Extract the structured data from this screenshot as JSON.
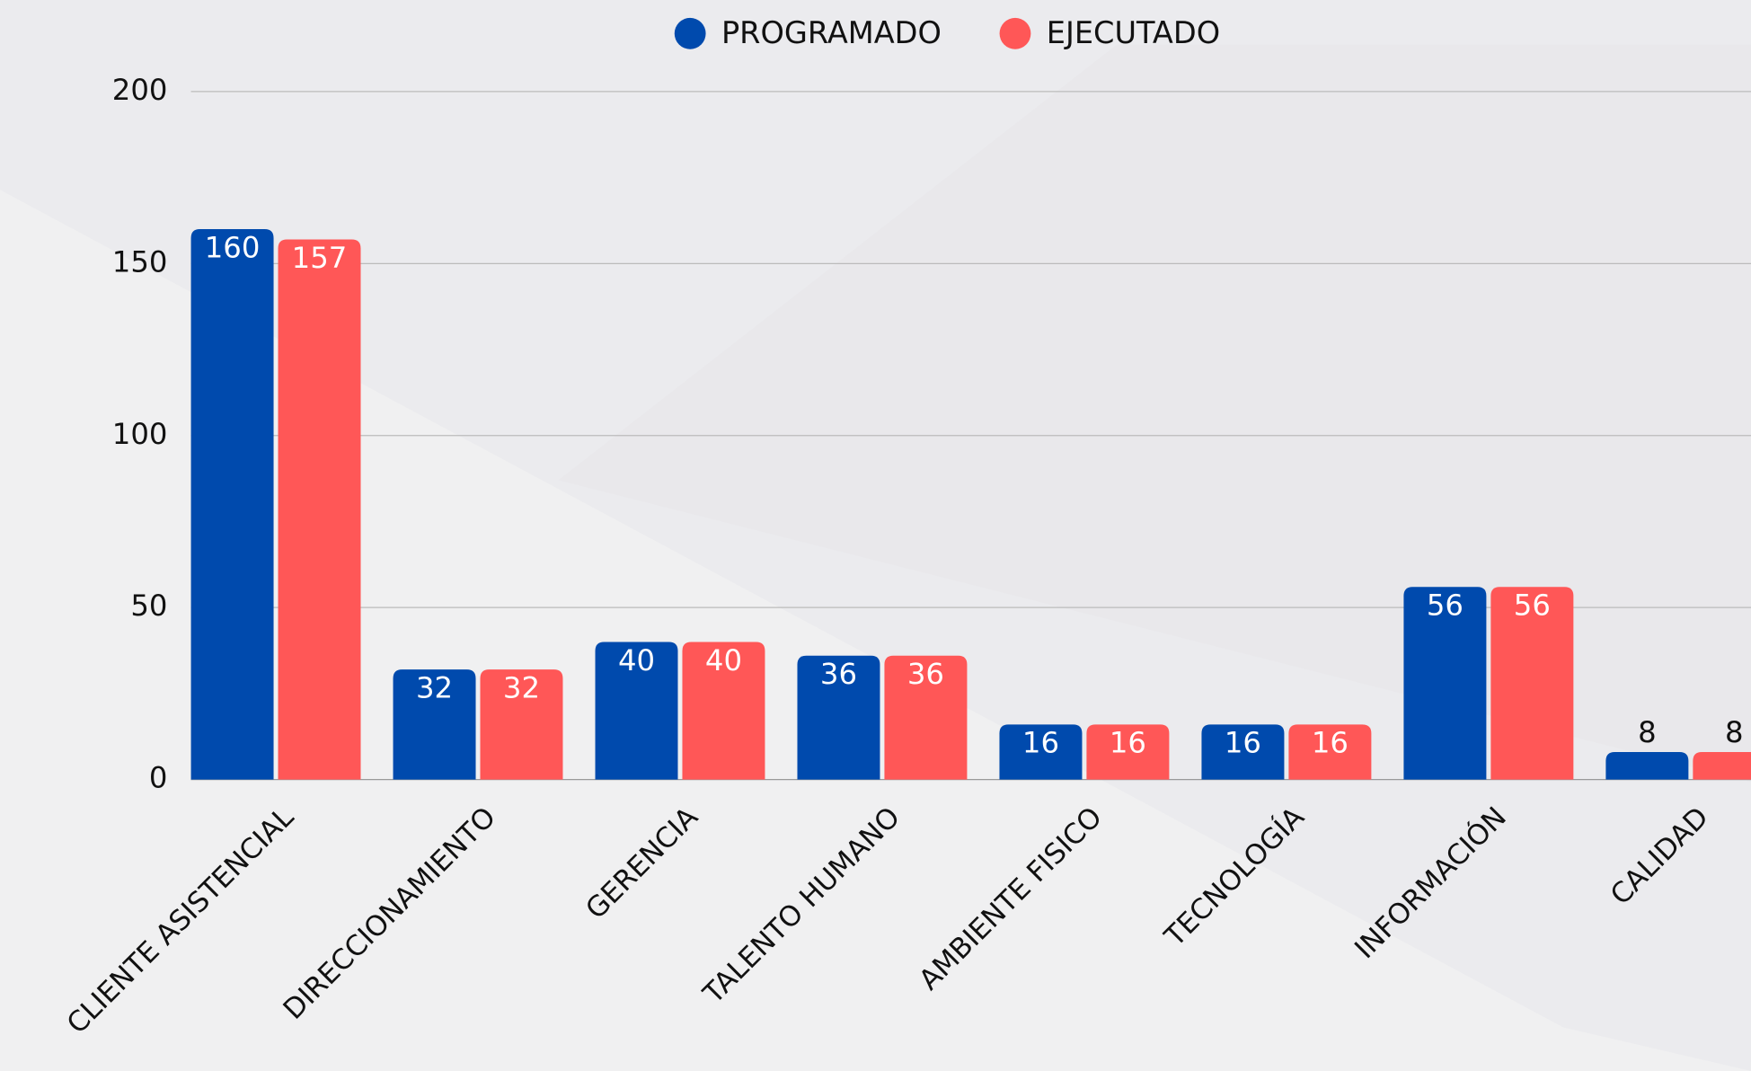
{
  "chart_data": {
    "type": "bar",
    "categories": [
      "CLIENTE ASISTENCIAL",
      "DIRECCIONAMIENTO",
      "GERENCIA",
      "TALENTO HUMANO",
      "AMBIENTE FISICO",
      "TECNOLOGÍA",
      "INFORMACIÓN",
      "CALIDAD"
    ],
    "series": [
      {
        "name": "PROGRAMADO",
        "color": "#004aad",
        "values": [
          160,
          32,
          40,
          36,
          16,
          16,
          56,
          8
        ]
      },
      {
        "name": "EJECUTADO",
        "color": "#ff5757",
        "values": [
          157,
          32,
          40,
          36,
          16,
          16,
          56,
          8
        ]
      }
    ],
    "ylim": [
      0,
      200
    ],
    "yticks": [
      0,
      50,
      100,
      150,
      200
    ],
    "grid": true,
    "legend": "top"
  }
}
